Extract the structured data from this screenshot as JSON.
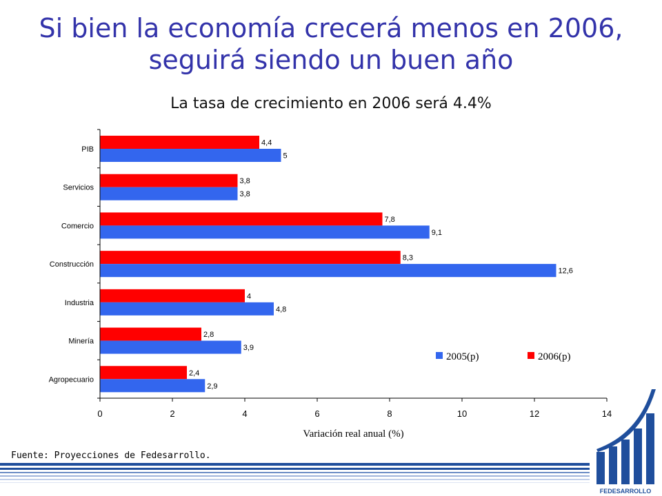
{
  "slide": {
    "title_line1": "Si bien la economía crecerá menos en 2006,",
    "title_line2": "seguirá siendo un buen año",
    "subtitle": "La tasa de crecimiento en 2006 será 4.4%",
    "source": "Fuente: Proyecciones de Fedesarrollo.",
    "logo_text": "FEDESARROLLO"
  },
  "colors": {
    "title": "#3333aa",
    "series_2005": "#3366ee",
    "series_2006": "#ff0000",
    "logo": "#1f4e9c"
  },
  "chart_data": {
    "type": "bar",
    "orientation": "horizontal",
    "title": "",
    "xlabel": "Variación real anual (%)",
    "ylabel": "",
    "xlim": [
      0,
      14
    ],
    "xticks": [
      0,
      2,
      4,
      6,
      8,
      10,
      12,
      14
    ],
    "categories": [
      "PIB",
      "Servicios",
      "Comercio",
      "Construcción",
      "Industria",
      "Minería",
      "Agropecuario"
    ],
    "series": [
      {
        "name": "2006(p)",
        "color": "#ff0000",
        "values": [
          4.4,
          3.8,
          7.8,
          8.3,
          4,
          2.8,
          2.4
        ],
        "labels": [
          "4,4",
          "3,8",
          "7,8",
          "8,3",
          "4",
          "2,8",
          "2,4"
        ]
      },
      {
        "name": "2005(p)",
        "color": "#3366ee",
        "values": [
          5,
          3.8,
          9.1,
          12.6,
          4.8,
          3.9,
          2.9
        ],
        "labels": [
          "5",
          "3,8",
          "9,1",
          "12,6",
          "4,8",
          "3,9",
          "2,9"
        ]
      }
    ],
    "legend": {
      "placement": "right",
      "order": [
        "2005(p)",
        "2006(p)"
      ]
    },
    "grid": false
  }
}
